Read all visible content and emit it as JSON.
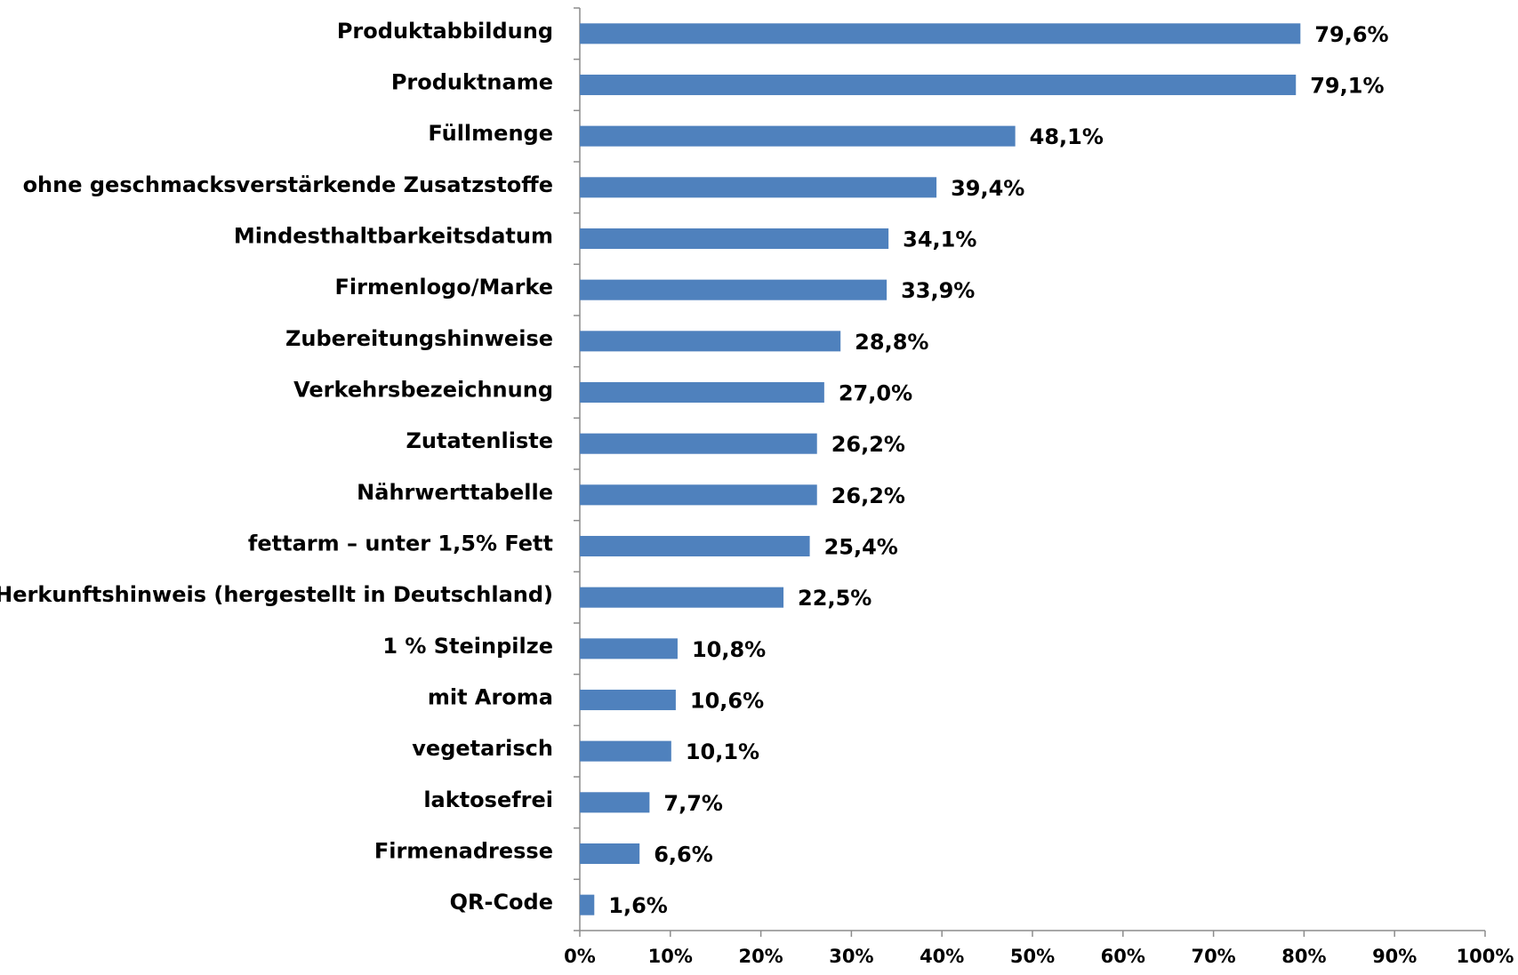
{
  "chart_data": {
    "type": "bar",
    "orientation": "horizontal",
    "categories": [
      "Produktabbildung",
      "Produktname",
      "Füllmenge",
      "ohne geschmacksverstärkende Zusatzstoffe",
      "Mindesthaltbarkeitsdatum",
      "Firmenlogo/Marke",
      "Zubereitungshinweise",
      "Verkehrsbezeichnung",
      "Zutatenliste",
      "Nährwerttabelle",
      "fettarm – unter 1,5% Fett",
      "Herkunftshinweis (hergestellt in Deutschland)",
      "1 % Steinpilze",
      "mit Aroma",
      "vegetarisch",
      "laktosefrei",
      "Firmenadresse",
      "QR-Code"
    ],
    "values": [
      79.6,
      79.1,
      48.1,
      39.4,
      34.1,
      33.9,
      28.8,
      27.0,
      26.2,
      26.2,
      25.4,
      22.5,
      10.8,
      10.6,
      10.1,
      7.7,
      6.6,
      1.6
    ],
    "value_labels": [
      "79,6%",
      "79,1%",
      "48,1%",
      "39,4%",
      "34,1%",
      "33,9%",
      "28,8%",
      "27,0%",
      "26,2%",
      "26,2%",
      "25,4%",
      "22,5%",
      "10,8%",
      "10,6%",
      "10,1%",
      "7,7%",
      "6,6%",
      "1,6%"
    ],
    "color": "#4f81bd",
    "xlim": [
      0,
      100
    ],
    "xticks": [
      {
        "value": 0,
        "label": "0%"
      },
      {
        "value": 10,
        "label": "10%"
      },
      {
        "value": 20,
        "label": "20%"
      },
      {
        "value": 30,
        "label": "30%"
      },
      {
        "value": 40,
        "label": "40%"
      },
      {
        "value": 50,
        "label": "50%"
      },
      {
        "value": 60,
        "label": "60%"
      },
      {
        "value": 70,
        "label": "70%"
      },
      {
        "value": 80,
        "label": "80%"
      },
      {
        "value": 90,
        "label": "90%"
      },
      {
        "value": 100,
        "label": "100%"
      }
    ],
    "grid": false
  }
}
